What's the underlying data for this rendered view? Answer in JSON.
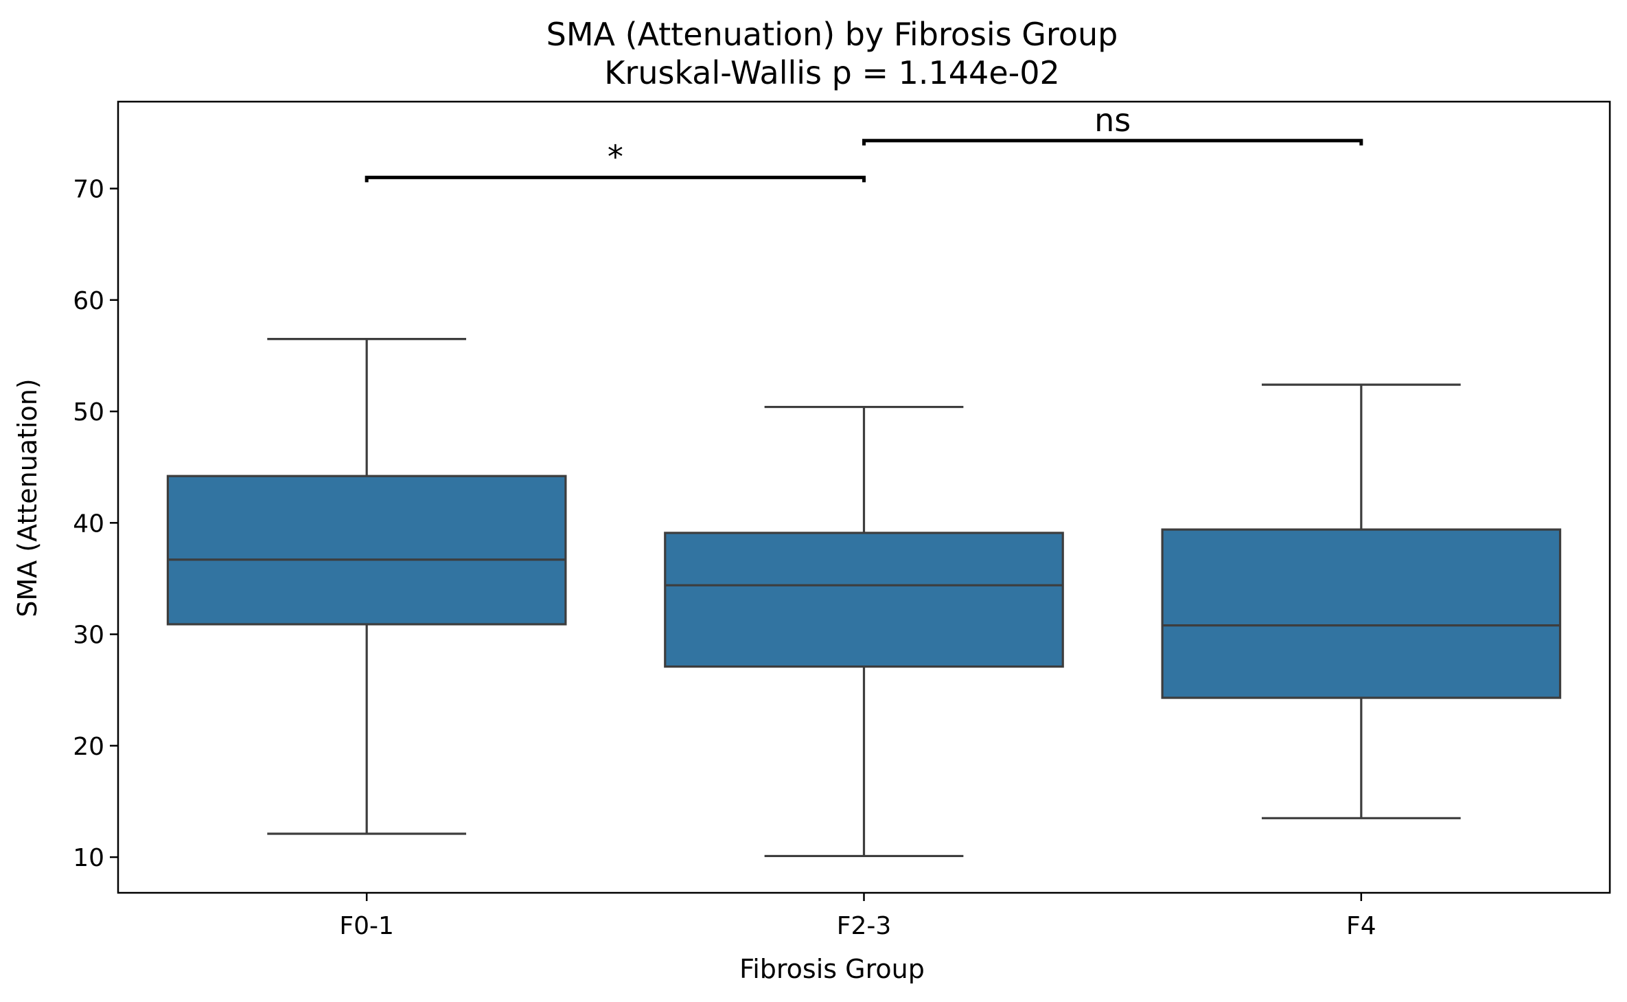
{
  "chart_data": {
    "type": "box",
    "title": "SMA (Attenuation) by Fibrosis Group",
    "subtitle": "Kruskal-Wallis p = 1.144e-02",
    "xlabel": "Fibrosis Group",
    "ylabel": "SMA (Attenuation)",
    "ylim": [
      6.8,
      77.8
    ],
    "yticks": [
      10,
      20,
      30,
      40,
      50,
      60,
      70
    ],
    "grid": false,
    "categories": [
      "F0-1",
      "F2-3",
      "F4"
    ],
    "boxes": [
      {
        "category": "F0-1",
        "whisker_low": 12.1,
        "q1": 30.9,
        "median": 36.7,
        "q3": 44.2,
        "whisker_high": 56.5
      },
      {
        "category": "F2-3",
        "whisker_low": 10.1,
        "q1": 27.1,
        "median": 34.4,
        "q3": 39.1,
        "whisker_high": 50.4
      },
      {
        "category": "F4",
        "whisker_low": 13.5,
        "q1": 24.3,
        "median": 30.8,
        "q3": 39.4,
        "whisker_high": 52.4
      }
    ],
    "box_color": "#3274a1",
    "line_color": "#3d3d3d",
    "significance": [
      {
        "from": 0,
        "to": 1,
        "label": "*",
        "y": 71.0
      },
      {
        "from": 1,
        "to": 2,
        "label": "ns",
        "y": 74.3
      }
    ]
  }
}
